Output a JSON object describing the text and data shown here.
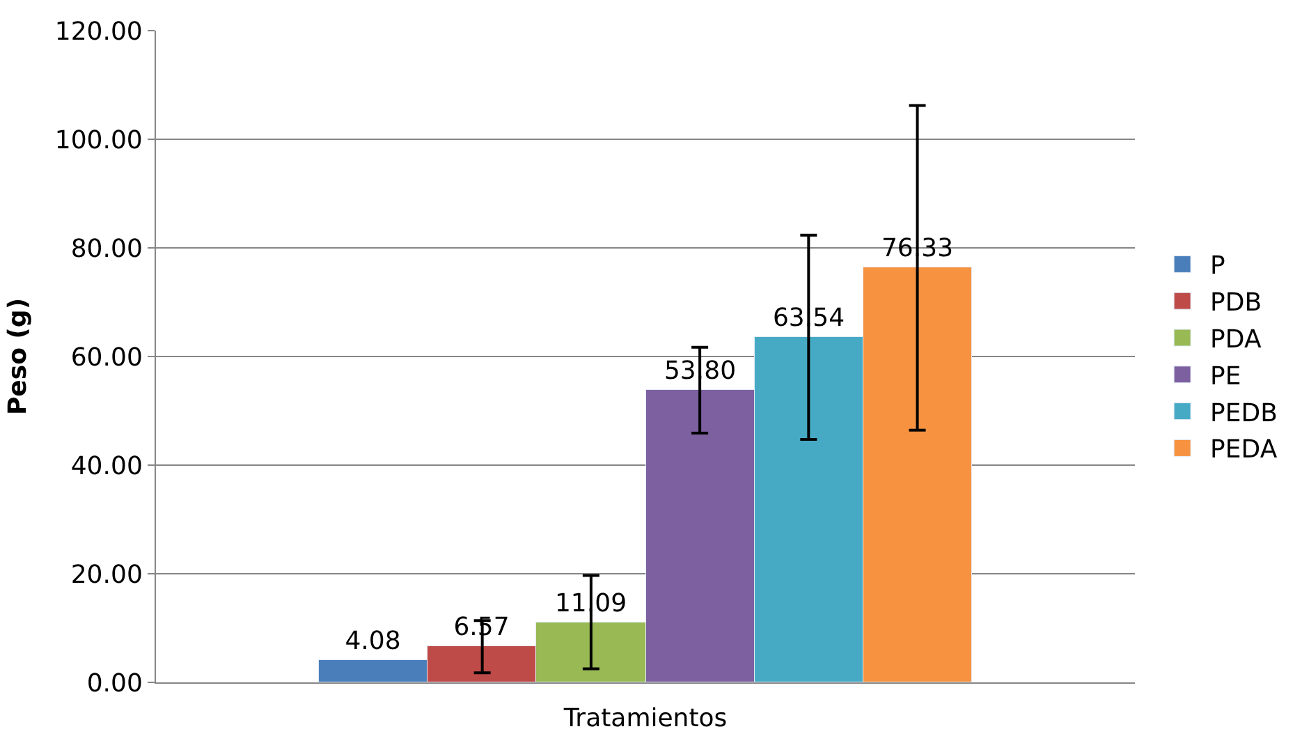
{
  "chart_data": {
    "type": "bar",
    "xlabel": "Tratamientos",
    "ylabel": "Peso (g)",
    "categories": [
      null
    ],
    "series": [
      {
        "name": "P",
        "color": "#4a7ebb",
        "values": [
          4.08
        ],
        "value_labels": [
          "4.08"
        ],
        "errors": [
          null
        ]
      },
      {
        "name": "PDB",
        "color": "#be4b48",
        "values": [
          6.57
        ],
        "value_labels": [
          "6.57"
        ],
        "errors": [
          4.8
        ]
      },
      {
        "name": "PDA",
        "color": "#98b954",
        "values": [
          11.09
        ],
        "value_labels": [
          "11.09"
        ],
        "errors": [
          8.6
        ]
      },
      {
        "name": "PE",
        "color": "#7d60a0",
        "values": [
          53.8
        ],
        "value_labels": [
          "53.80"
        ],
        "errors": [
          7.9
        ]
      },
      {
        "name": "PEDB",
        "color": "#46aac5",
        "values": [
          63.54
        ],
        "value_labels": [
          "63.54"
        ],
        "errors": [
          18.8
        ]
      },
      {
        "name": "PEDA",
        "color": "#f69240",
        "values": [
          76.33
        ],
        "value_labels": [
          "76.33"
        ],
        "errors": [
          29.9
        ]
      }
    ],
    "ylim": [
      0,
      120
    ],
    "yticks": [
      {
        "value": 0,
        "label": "0.00"
      },
      {
        "value": 20,
        "label": "20.00"
      },
      {
        "value": 40,
        "label": "40.00"
      },
      {
        "value": 60,
        "label": "60.00"
      },
      {
        "value": 80,
        "label": "80.00"
      },
      {
        "value": 100,
        "label": "100.00"
      },
      {
        "value": 120,
        "label": "120.00"
      }
    ],
    "grid": "y",
    "legend": "right"
  }
}
